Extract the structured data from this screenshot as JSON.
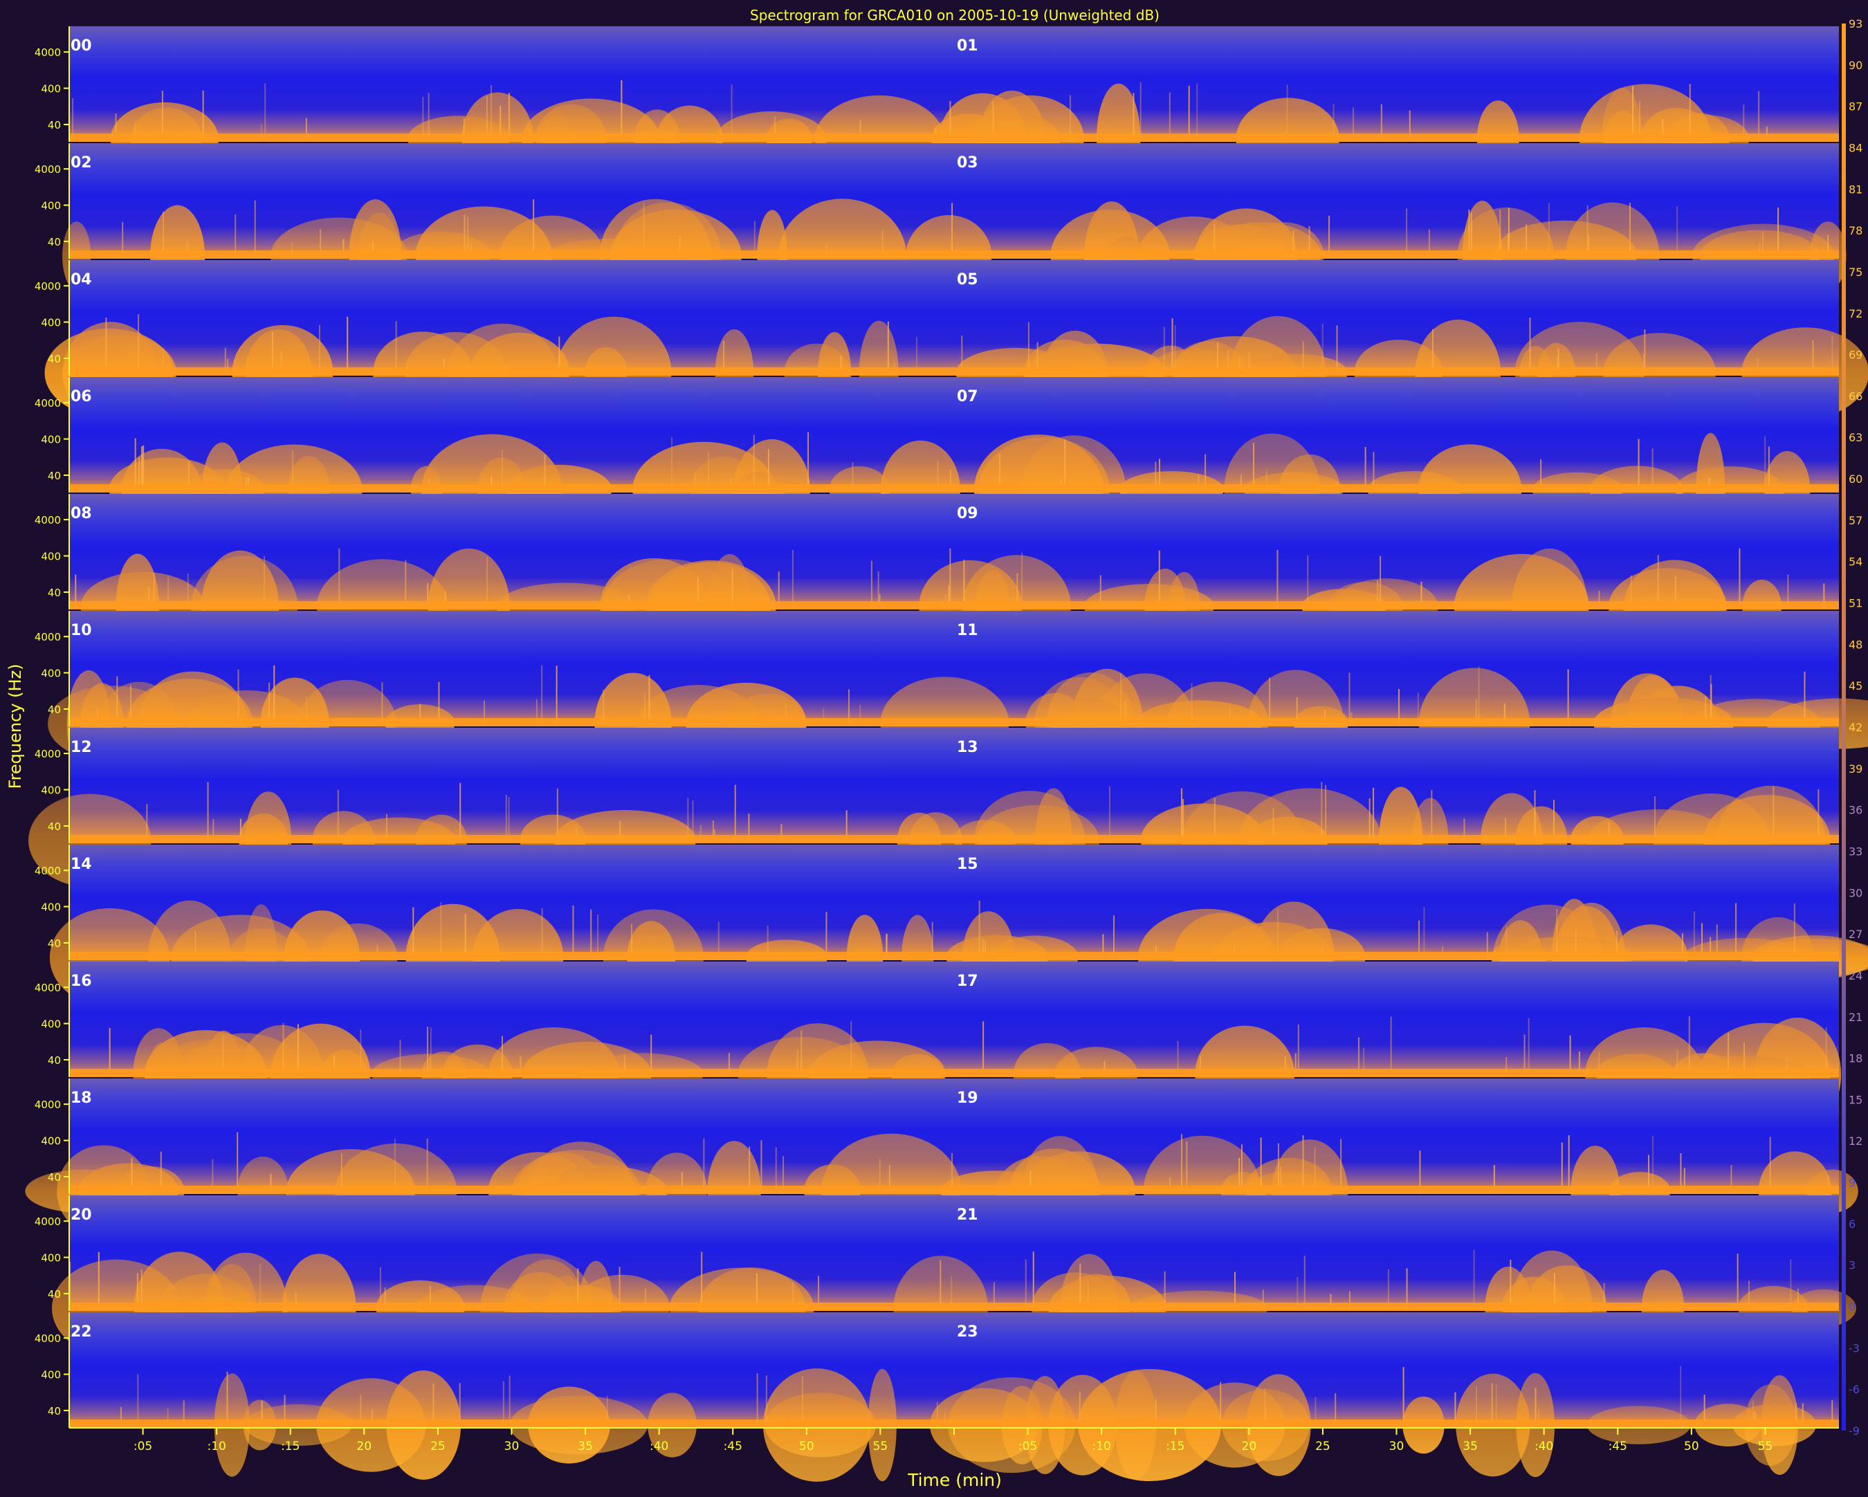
{
  "chart_data": {
    "type": "heatmap",
    "title": "Spectrogram for GRCA010 on 2005-10-19 (Unweighted dB)",
    "xlabel": "Time (min)",
    "ylabel": "Frequency (Hz)",
    "y_tick_labels": [
      "4000",
      "400",
      "40"
    ],
    "x_tick_labels": [
      ":05",
      ":10",
      ":15",
      "20",
      "25",
      "30",
      "35",
      ":40",
      ":45",
      "50",
      "55",
      "",
      ":05",
      ":10",
      ":15",
      "20",
      "25",
      "30",
      "35",
      ":40",
      ":45",
      "50",
      "55"
    ],
    "hour_labels": [
      "00",
      "01",
      "02",
      "03",
      "04",
      "05",
      "06",
      "07",
      "08",
      "09",
      "10",
      "11",
      "12",
      "13",
      "14",
      "15",
      "16",
      "17",
      "18",
      "19",
      "20",
      "21",
      "22",
      "23"
    ],
    "colorbar_ticks": [
      "93",
      "90",
      "87",
      "84",
      "81",
      "78",
      "75",
      "72",
      "69",
      "66",
      "63",
      "60",
      "57",
      "54",
      "51",
      "48",
      "45",
      "42",
      "39",
      "36",
      "33",
      "30",
      "27",
      "24",
      "21",
      "18",
      "15",
      "12",
      "9",
      "6",
      "3",
      "0",
      "-3",
      "-6",
      "-9"
    ],
    "colorbar_range_db": [
      -9,
      93
    ],
    "grid": false,
    "colors": {
      "background": "#1a0d2e",
      "low_level": "#1e1ee6",
      "high_level": "#ffa020",
      "band_top": "#5a4aa8",
      "text": "#ffff3c",
      "hour_label": "#ffffff"
    }
  }
}
